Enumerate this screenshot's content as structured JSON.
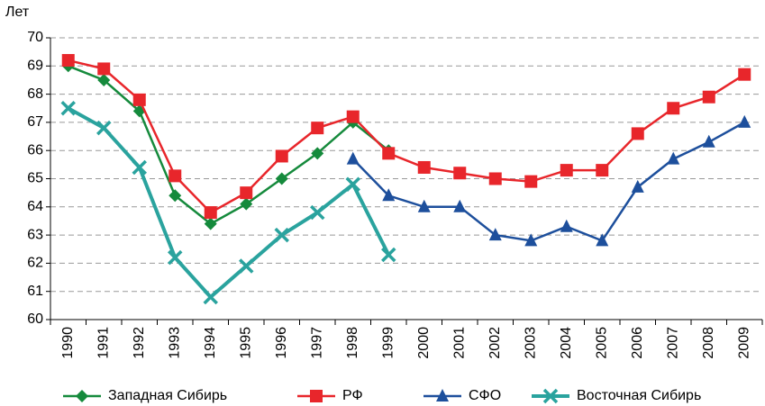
{
  "chart_data": {
    "type": "line",
    "y_label": "Лет",
    "categories": [
      "1990",
      "1991",
      "1992",
      "1993",
      "1994",
      "1995",
      "1996",
      "1997",
      "1998",
      "1999",
      "2000",
      "2001",
      "2002",
      "2003",
      "2004",
      "2005",
      "2006",
      "2007",
      "2008",
      "2009"
    ],
    "series": [
      {
        "name": "Западная Сибирь",
        "color": "#158a3c",
        "marker": "diamond",
        "values": [
          69.0,
          68.5,
          67.4,
          64.4,
          63.4,
          64.1,
          65.0,
          65.9,
          67.0,
          66.0,
          null,
          null,
          null,
          null,
          null,
          null,
          null,
          null,
          null,
          null
        ]
      },
      {
        "name": "РФ",
        "color": "#e8262b",
        "marker": "square",
        "values": [
          69.2,
          68.9,
          67.8,
          65.1,
          63.8,
          64.5,
          65.8,
          66.8,
          67.2,
          65.9,
          65.4,
          65.2,
          65.0,
          64.9,
          65.3,
          65.3,
          66.6,
          67.5,
          67.9,
          68.7
        ]
      },
      {
        "name": "СФО",
        "color": "#1d4f9c",
        "marker": "triangle",
        "values": [
          null,
          null,
          null,
          null,
          null,
          null,
          null,
          null,
          65.7,
          64.4,
          64.0,
          64.0,
          63.0,
          62.8,
          63.3,
          62.8,
          64.7,
          65.7,
          66.3,
          67.0
        ]
      },
      {
        "name": "Восточная Сибирь",
        "color": "#2aa39e",
        "marker": "x",
        "values": [
          67.5,
          66.8,
          65.4,
          62.2,
          60.8,
          61.9,
          63.0,
          63.8,
          64.8,
          62.3,
          null,
          null,
          null,
          null,
          null,
          null,
          null,
          null,
          null,
          null
        ]
      }
    ],
    "ylim": [
      60,
      70
    ],
    "yticks": [
      60,
      61,
      62,
      63,
      64,
      65,
      66,
      67,
      68,
      69,
      70
    ],
    "grid": true
  }
}
